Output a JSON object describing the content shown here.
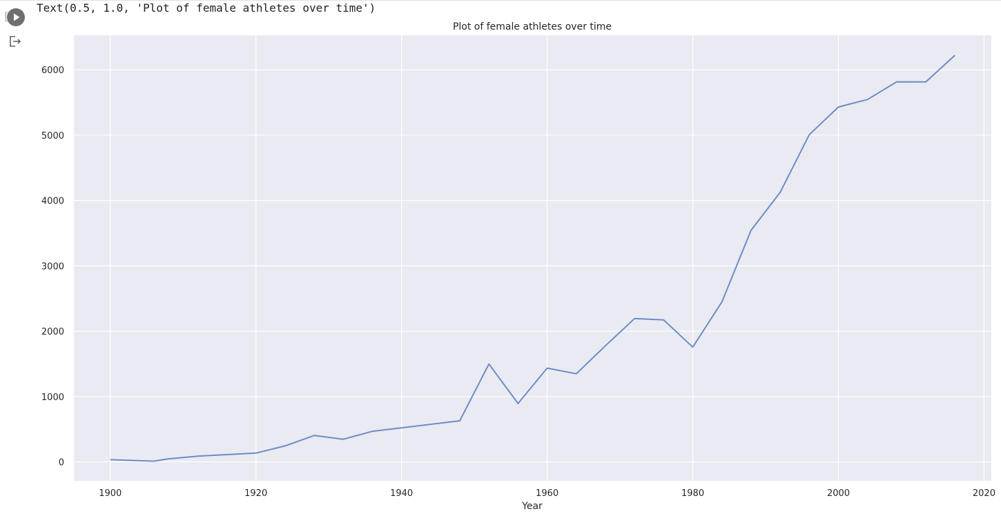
{
  "cell": {
    "output_text": "Text(0.5, 1.0, 'Plot of female athletes over time')",
    "run_icon": "play-circle-icon",
    "output_icon": "output-redirect-icon"
  },
  "chart_data": {
    "type": "line",
    "title": "Plot of female athletes over time",
    "xlabel": "Year",
    "ylabel": "",
    "xlim": [
      1895,
      2021
    ],
    "ylim": [
      -290,
      6530
    ],
    "xticks": [
      1900,
      1920,
      1940,
      1960,
      1980,
      2000,
      2020
    ],
    "yticks": [
      0,
      1000,
      2000,
      3000,
      4000,
      5000,
      6000
    ],
    "grid": true,
    "legend": "none",
    "colors": {
      "line": "#6b8cc4",
      "background": "#eaeaf2",
      "grid": "#ffffff"
    },
    "series": [
      {
        "x": [
          1900,
          1906,
          1908,
          1912,
          1920,
          1924,
          1928,
          1932,
          1936,
          1948,
          1952,
          1956,
          1960,
          1964,
          1968,
          1972,
          1976,
          1980,
          1984,
          1988,
          1992,
          1996,
          2000,
          2004,
          2008,
          2012,
          2016
        ],
        "values": [
          33,
          11,
          47,
          87,
          134,
          244,
          404,
          347,
          468,
          628,
          1497,
          893,
          1435,
          1348,
          1777,
          2193,
          2172,
          1756,
          2447,
          3543,
          4124,
          5008,
          5431,
          5546,
          5816,
          5815,
          6223
        ]
      }
    ]
  }
}
